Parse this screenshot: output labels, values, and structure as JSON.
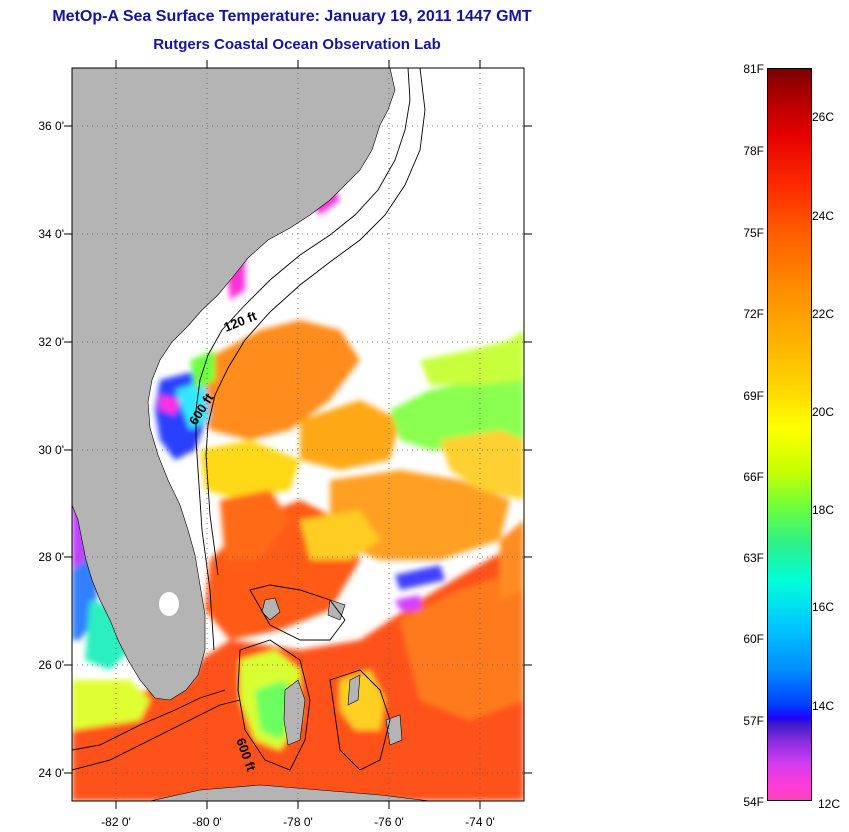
{
  "title": {
    "line1": "MetOp-A Sea Surface Temperature:  January 19, 2011 1447 GMT",
    "line2": "Rutgers Coastal Ocean Observation Lab"
  },
  "map": {
    "lat_labels": [
      "36 0'",
      "34 0'",
      "32 0'",
      "30 0'",
      "28 0'",
      "26 0'",
      "24 0'"
    ],
    "lon_labels": [
      "-82 0'",
      "-80 0'",
      "-78 0'",
      "-76 0'",
      "-74 0'"
    ],
    "contour_labels": [
      "120 ft",
      "600 ft",
      "600 ft"
    ],
    "land_color": "#b4b4b4",
    "no_data_color": "#ffffff"
  },
  "colorbar": {
    "fahrenheit_labels": [
      "81F",
      "78F",
      "75F",
      "72F",
      "69F",
      "66F",
      "63F",
      "60F",
      "57F",
      "54F"
    ],
    "celsius_labels": [
      "26C",
      "24C",
      "22C",
      "20C",
      "18C",
      "16C",
      "14C",
      "12C"
    ],
    "range_celsius": [
      12,
      27
    ],
    "colors": [
      "#7a0000",
      "#e60000",
      "#ff5a00",
      "#ffb000",
      "#ffff00",
      "#6cff3c",
      "#00ffd8",
      "#0090ff",
      "#2000ff",
      "#8a2ee0",
      "#ff40c0"
    ]
  }
}
